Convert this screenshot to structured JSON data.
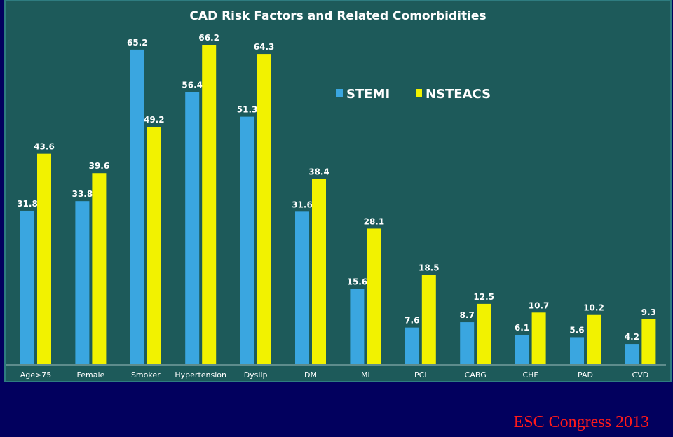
{
  "chart_data": {
    "type": "bar",
    "title": "CAD Risk Factors and Related Comorbidities",
    "categories": [
      "Age>75",
      "Female",
      "Smoker",
      "Hypertension",
      "Dyslip",
      "DM",
      "MI",
      "PCI",
      "CABG",
      "CHF",
      "PAD",
      "CVD"
    ],
    "series": [
      {
        "name": "STEMI",
        "values": [
          31.8,
          33.8,
          65.2,
          56.4,
          51.3,
          31.6,
          15.6,
          7.6,
          8.7,
          6.1,
          5.6,
          4.2
        ],
        "color": "#3aa6e0"
      },
      {
        "name": "NSTEACS",
        "values": [
          43.6,
          39.6,
          49.2,
          66.2,
          64.3,
          38.4,
          28.1,
          18.5,
          12.5,
          10.7,
          10.2,
          9.3
        ],
        "color": "#f2f200"
      }
    ],
    "ylim": [
      0,
      66.2
    ],
    "legend_position": "top-right",
    "grid": false
  },
  "footer": {
    "text": "ESC Congress 2013",
    "color": "#ff1a1a"
  },
  "colors": {
    "background": "#02005e",
    "panel": "#1d5a5a"
  }
}
